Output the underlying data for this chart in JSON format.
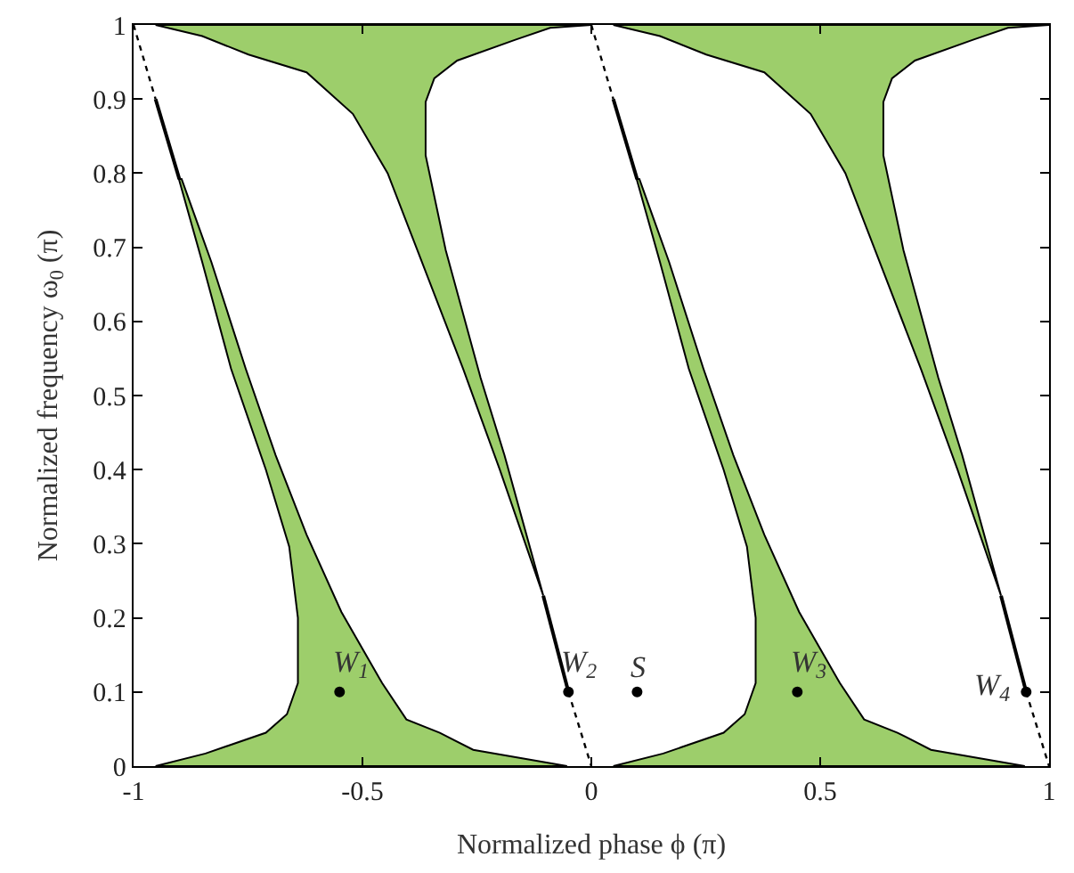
{
  "chart_data": {
    "type": "area",
    "xlabel": "Normalized phase ϕ (π)",
    "ylabel": "Normalized frequency ω$_{0}$ (π)",
    "xlim": [
      -1,
      1
    ],
    "ylim": [
      0,
      1
    ],
    "xticks": [
      -1,
      -0.5,
      0,
      0.5,
      1
    ],
    "yticks": [
      0,
      0.1,
      0.2,
      0.3,
      0.4,
      0.5,
      0.6,
      0.7,
      0.8,
      0.9,
      1
    ],
    "series": [
      {
        "color": "#9dce6b",
        "x": [
          -0.952,
          -0.843,
          -0.711,
          -0.665,
          -0.641,
          -0.641,
          -0.66,
          -0.711,
          -0.787,
          -0.85,
          -0.901,
          -0.895,
          -0.83,
          -0.755,
          -0.69,
          -0.622,
          -0.546,
          -0.457,
          -0.404,
          -0.331,
          -0.258,
          -0.053,
          -0.952
        ],
        "values": [
          0,
          0.017,
          0.045,
          0.07,
          0.112,
          0.2,
          0.296,
          0.4,
          0.536,
          0.68,
          0.792,
          0.792,
          0.68,
          0.536,
          0.42,
          0.312,
          0.208,
          0.112,
          0.063,
          0.045,
          0.022,
          0,
          0
        ]
      },
      {
        "color": "#9dce6b",
        "x": [
          -0.952,
          -0.85,
          -0.749,
          -0.622,
          -0.521,
          -0.445,
          -0.38,
          -0.28,
          -0.2,
          -0.105,
          -0.19,
          -0.242,
          -0.318,
          -0.362,
          -0.362,
          -0.343,
          -0.293,
          -0.166,
          -0.09,
          0,
          -0.952
        ],
        "values": [
          1,
          0.985,
          0.96,
          0.936,
          0.88,
          0.8,
          0.696,
          0.536,
          0.4,
          0.23,
          0.42,
          0.524,
          0.696,
          0.824,
          0.896,
          0.928,
          0.952,
          0.98,
          0.996,
          1,
          1
        ]
      },
      {
        "color": "#9dce6b",
        "x": [
          0.048,
          0.157,
          0.289,
          0.335,
          0.359,
          0.359,
          0.34,
          0.289,
          0.213,
          0.15,
          0.099,
          0.105,
          0.17,
          0.245,
          0.31,
          0.378,
          0.454,
          0.543,
          0.596,
          0.669,
          0.742,
          0.947,
          0.048
        ],
        "values": [
          0,
          0.017,
          0.045,
          0.07,
          0.112,
          0.2,
          0.296,
          0.4,
          0.536,
          0.68,
          0.792,
          0.792,
          0.68,
          0.536,
          0.42,
          0.312,
          0.208,
          0.112,
          0.063,
          0.045,
          0.022,
          0,
          0
        ]
      },
      {
        "color": "#9dce6b",
        "x": [
          0.048,
          0.15,
          0.251,
          0.378,
          0.479,
          0.555,
          0.62,
          0.72,
          0.8,
          0.895,
          0.81,
          0.758,
          0.682,
          0.638,
          0.638,
          0.657,
          0.707,
          0.834,
          0.91,
          1,
          0.048
        ],
        "values": [
          1,
          0.985,
          0.96,
          0.936,
          0.88,
          0.8,
          0.696,
          0.536,
          0.4,
          0.23,
          0.42,
          0.524,
          0.696,
          0.824,
          0.896,
          0.928,
          0.952,
          0.98,
          0.996,
          1,
          1
        ]
      },
      {
        "type": "line",
        "color": "#000000",
        "line_style": "dotted",
        "x": [
          -1,
          -0.952
        ],
        "values": [
          1,
          0.9
        ]
      },
      {
        "type": "line",
        "color": "#000000",
        "line_style": "solid",
        "x": [
          -0.952,
          -0.9
        ],
        "values": [
          0.9,
          0.792
        ]
      },
      {
        "type": "line",
        "color": "#000000",
        "line_style": "solid",
        "x": [
          -0.105,
          -0.05
        ],
        "values": [
          0.23,
          0.1
        ]
      },
      {
        "type": "line",
        "color": "#000000",
        "line_style": "dotted",
        "x": [
          -0.05,
          0
        ],
        "values": [
          0.1,
          0
        ]
      },
      {
        "type": "line",
        "color": "#000000",
        "line_style": "dotted",
        "x": [
          0,
          0.048
        ],
        "values": [
          1,
          0.9
        ]
      },
      {
        "type": "line",
        "color": "#000000",
        "line_style": "solid",
        "x": [
          0.048,
          0.1
        ],
        "values": [
          0.9,
          0.792
        ]
      },
      {
        "type": "line",
        "color": "#000000",
        "line_style": "solid",
        "x": [
          0.895,
          0.95
        ],
        "values": [
          0.23,
          0.1
        ]
      },
      {
        "type": "line",
        "color": "#000000",
        "line_style": "dotted",
        "x": [
          0.95,
          1
        ],
        "values": [
          0.1,
          0
        ]
      },
      {
        "type": "scatter",
        "color": "#000000",
        "marker": "circle",
        "x": [
          -0.55,
          -0.05,
          0.1,
          0.45,
          0.95
        ],
        "values": [
          0.1,
          0.1,
          0.1,
          0.1,
          0.1
        ]
      }
    ],
    "annotations": [
      {
        "text": "W$_{1}$",
        "x": -0.55,
        "y": 0.1
      },
      {
        "text": "W$_{2}$",
        "x": -0.05,
        "y": 0.1
      },
      {
        "text": "S",
        "x": 0.1,
        "y": 0.1
      },
      {
        "text": "W$_{3}$",
        "x": 0.45,
        "y": 0.1
      },
      {
        "text": "W$_{4}$",
        "x": 0.95,
        "y": 0.1
      }
    ]
  }
}
